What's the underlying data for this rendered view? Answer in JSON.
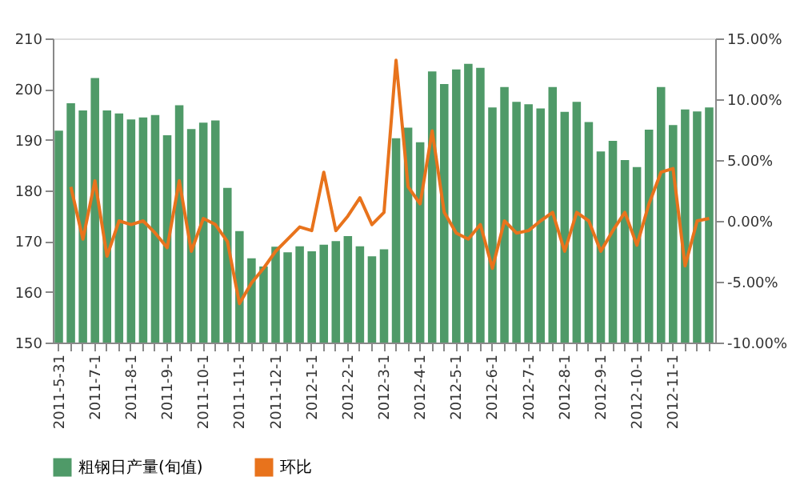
{
  "chart_data": {
    "type": "bar",
    "categories": [
      "2011-5-31",
      null,
      null,
      "2011-7-1",
      null,
      null,
      "2011-8-1",
      null,
      null,
      "2011-9-1",
      null,
      null,
      "2011-10-1",
      null,
      null,
      "2011-11-1",
      null,
      null,
      "2011-12-1",
      null,
      null,
      "2012-1-1",
      null,
      null,
      "2012-2-1",
      null,
      null,
      "2012-3-1",
      null,
      null,
      "2012-4-1",
      null,
      null,
      "2012-5-1",
      null,
      null,
      "2012-6-1",
      null,
      null,
      "2012-7-1",
      null,
      null,
      "2012-8-1",
      null,
      null,
      "2012-9-1",
      null,
      null,
      "2012-10-1",
      null,
      null,
      "2012-11-1",
      null,
      null,
      null
    ],
    "series": [
      {
        "name": "粗钢日产量(旬值)",
        "color": "#4f9a68",
        "values": [
          191.8,
          197.2,
          195.8,
          202.2,
          195.8,
          195.2,
          194.0,
          194.4,
          194.9,
          190.9,
          196.8,
          192.1,
          193.4,
          193.8,
          180.5,
          172,
          166.6,
          165,
          168.9,
          167.8,
          169,
          168,
          169.3,
          170,
          171,
          169,
          167,
          168.4,
          190.3,
          192.4,
          189.5,
          203.5,
          201.0,
          203.9,
          205.0,
          204.2,
          196.4,
          200.4,
          197.5,
          197.0,
          196.2,
          200.4,
          195.5,
          197.5,
          193.5,
          187.7,
          189.8,
          186.0,
          184.6,
          192.0,
          200.4,
          192.9,
          196.0,
          195.6,
          196.4
        ]
      },
      {
        "name": "环比",
        "type": "line",
        "axis": "y2",
        "color": "#e8731c",
        "values": [
          null,
          2.8,
          -1.5,
          3.3,
          -2.9,
          0,
          -0.3,
          0,
          -1.0,
          -2.2,
          3.3,
          -2.5,
          0.2,
          -0.3,
          -1.7,
          -6.8,
          -5.1,
          -3.9,
          -2.5,
          -1.5,
          -0.5,
          -0.8,
          4.0,
          -0.8,
          0.4,
          1.9,
          -0.3,
          0.7,
          13.2,
          2.8,
          1.4,
          7.4,
          0.7,
          -1.0,
          -1.5,
          -0.3,
          -3.9,
          0,
          -1.0,
          -0.8,
          0,
          0.7,
          -2.5,
          0.7,
          0,
          -2.5,
          -0.8,
          0.7,
          -2.0,
          1.4,
          4.0,
          4.3,
          -3.7,
          0,
          0.2
        ]
      }
    ],
    "ylim": [
      150,
      210
    ],
    "yticks": [
      150,
      160,
      170,
      180,
      190,
      200,
      210
    ],
    "y2lim": [
      -10,
      15
    ],
    "y2ticks": [
      {
        "value": -10,
        "label": "-10.00%"
      },
      {
        "value": -5,
        "label": "-5.00%"
      },
      {
        "value": 0,
        "label": "0.00%"
      },
      {
        "value": 5,
        "label": "5.00%"
      },
      {
        "value": 10,
        "label": "10.00%"
      },
      {
        "value": 15,
        "label": "15.00%"
      }
    ],
    "grid": false,
    "legend": "bottom",
    "marker": "none",
    "line_style": "solid"
  }
}
